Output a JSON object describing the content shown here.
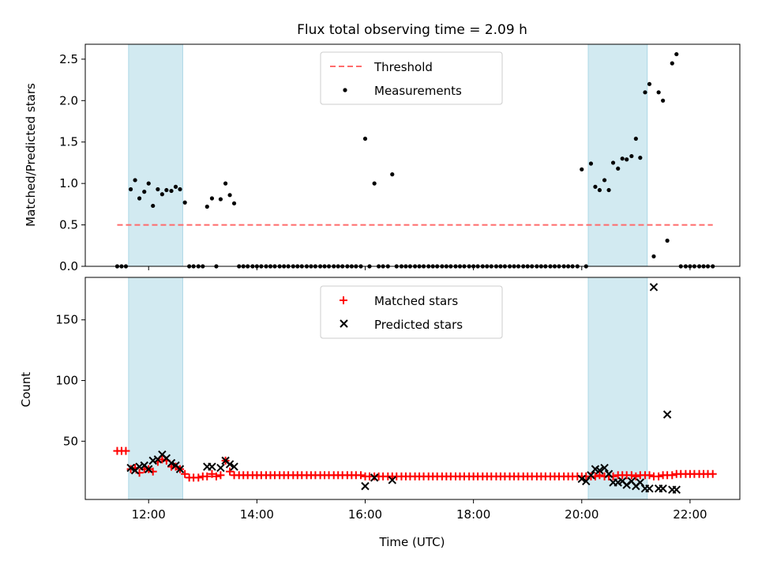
{
  "chart_data": [
    {
      "type": "scatter",
      "title": "Flux total observing time = 2.09 h",
      "xlabel": "",
      "ylabel": "Matched/Predicted stars",
      "xlim": [
        10.83,
        22.92
      ],
      "ylim": [
        0,
        2.68
      ],
      "yticks": [
        0.0,
        0.5,
        1.0,
        1.5,
        2.0,
        2.5
      ],
      "ytick_labels": [
        "0.0",
        "0.5",
        "1.0",
        "1.5",
        "2.0",
        "2.5"
      ],
      "xticks": [
        12,
        14,
        16,
        18,
        20,
        22
      ],
      "shaded_intervals": [
        [
          11.63,
          12.63
        ],
        [
          20.12,
          21.21
        ]
      ],
      "legend": {
        "location": "upper center",
        "entries": [
          "Threshold",
          "Measurements"
        ]
      },
      "series": [
        {
          "name": "Threshold",
          "style": "dashed-line",
          "color": "#ff6b6b",
          "x": [
            11.42,
            22.42
          ],
          "y": [
            0.5,
            0.5
          ]
        },
        {
          "name": "Measurements",
          "style": "dot",
          "color": "#000000",
          "x": [
            11.42,
            11.5,
            11.58,
            11.67,
            11.75,
            11.83,
            11.92,
            12.0,
            12.08,
            12.17,
            12.25,
            12.33,
            12.42,
            12.5,
            12.58,
            12.67,
            12.75,
            12.83,
            12.92,
            13.0,
            13.08,
            13.17,
            13.25,
            13.33,
            13.42,
            13.5,
            13.58,
            13.67,
            13.75,
            13.83,
            13.92,
            14.0,
            14.08,
            14.17,
            14.25,
            14.33,
            14.42,
            14.5,
            14.58,
            14.67,
            14.75,
            14.83,
            14.92,
            15.0,
            15.08,
            15.17,
            15.25,
            15.33,
            15.42,
            15.5,
            15.58,
            15.67,
            15.75,
            15.83,
            15.92,
            16.0,
            16.08,
            16.17,
            16.25,
            16.33,
            16.42,
            16.5,
            16.58,
            16.67,
            16.75,
            16.83,
            16.92,
            17.0,
            17.08,
            17.17,
            17.25,
            17.33,
            17.42,
            17.5,
            17.58,
            17.67,
            17.75,
            17.83,
            17.92,
            18.0,
            18.08,
            18.17,
            18.25,
            18.33,
            18.42,
            18.5,
            18.58,
            18.67,
            18.75,
            18.83,
            18.92,
            19.0,
            19.08,
            19.17,
            19.25,
            19.33,
            19.42,
            19.5,
            19.58,
            19.67,
            19.75,
            19.83,
            19.92,
            20.0,
            20.08,
            20.17,
            20.25,
            20.33,
            20.42,
            20.5,
            20.58,
            20.67,
            20.75,
            20.83,
            20.92,
            21.0,
            21.08,
            21.17,
            21.25,
            21.33,
            21.42,
            21.5,
            21.58,
            21.67,
            21.75,
            21.83,
            21.92,
            22.0,
            22.08,
            22.17,
            22.25,
            22.33,
            22.42
          ],
          "y": [
            0,
            0,
            0,
            0.93,
            1.04,
            0.82,
            0.9,
            1.0,
            0.73,
            0.93,
            0.87,
            0.92,
            0.91,
            0.96,
            0.93,
            0.77,
            0,
            0,
            0,
            0,
            0.72,
            0.82,
            0,
            0.81,
            1.0,
            0.86,
            0.76,
            0,
            0,
            0,
            0,
            0,
            0,
            0,
            0,
            0,
            0,
            0,
            0,
            0,
            0,
            0,
            0,
            0,
            0,
            0,
            0,
            0,
            0,
            0,
            0,
            0,
            0,
            0,
            0,
            1.54,
            0,
            1.0,
            0,
            0,
            0,
            1.11,
            0,
            0,
            0,
            0,
            0,
            0,
            0,
            0,
            0,
            0,
            0,
            0,
            0,
            0,
            0,
            0,
            0,
            0,
            0,
            0,
            0,
            0,
            0,
            0,
            0,
            0,
            0,
            0,
            0,
            0,
            0,
            0,
            0,
            0,
            0,
            0,
            0,
            0,
            0,
            0,
            0,
            1.17,
            0,
            1.24,
            0.96,
            0.92,
            1.04,
            0.92,
            1.25,
            1.18,
            1.3,
            1.29,
            1.33,
            1.54,
            1.31,
            2.1,
            2.2,
            0.12,
            2.1,
            2.0,
            0.31,
            2.45,
            2.56,
            0,
            0,
            0,
            0,
            0,
            0,
            0,
            0
          ]
        }
      ]
    },
    {
      "type": "scatter",
      "title": "",
      "xlabel": "Time (UTC)",
      "ylabel": "Count",
      "xlim": [
        10.83,
        22.92
      ],
      "ylim": [
        2,
        185
      ],
      "yticks": [
        50,
        100,
        150
      ],
      "ytick_labels": [
        "50",
        "100",
        "150"
      ],
      "xticks": [
        12,
        14,
        16,
        18,
        20,
        22
      ],
      "xtick_labels": [
        "12:00",
        "14:00",
        "16:00",
        "18:00",
        "20:00",
        "22:00"
      ],
      "shaded_intervals": [
        [
          11.63,
          12.63
        ],
        [
          20.12,
          21.21
        ]
      ],
      "legend": {
        "location": "upper center",
        "entries": [
          "Matched stars",
          "Predicted stars"
        ]
      },
      "series": [
        {
          "name": "Matched stars",
          "marker": "+",
          "color": "#ff0000",
          "x": [
            11.42,
            11.5,
            11.58,
            11.67,
            11.75,
            11.83,
            11.92,
            12.0,
            12.08,
            12.17,
            12.25,
            12.33,
            12.42,
            12.5,
            12.58,
            12.67,
            12.75,
            12.83,
            12.92,
            13.0,
            13.08,
            13.17,
            13.25,
            13.33,
            13.42,
            13.5,
            13.58,
            13.67,
            13.75,
            13.83,
            13.92,
            14.0,
            14.08,
            14.17,
            14.25,
            14.33,
            14.42,
            14.5,
            14.58,
            14.67,
            14.75,
            14.83,
            14.92,
            15.0,
            15.08,
            15.17,
            15.25,
            15.33,
            15.42,
            15.5,
            15.58,
            15.67,
            15.75,
            15.83,
            15.92,
            16.0,
            16.08,
            16.17,
            16.25,
            16.33,
            16.42,
            16.5,
            16.58,
            16.67,
            16.75,
            16.83,
            16.92,
            17.0,
            17.08,
            17.17,
            17.25,
            17.33,
            17.42,
            17.5,
            17.58,
            17.67,
            17.75,
            17.83,
            17.92,
            18.0,
            18.08,
            18.17,
            18.25,
            18.33,
            18.42,
            18.5,
            18.58,
            18.67,
            18.75,
            18.83,
            18.92,
            19.0,
            19.08,
            19.17,
            19.25,
            19.33,
            19.42,
            19.5,
            19.58,
            19.67,
            19.75,
            19.83,
            19.92,
            20.0,
            20.08,
            20.17,
            20.25,
            20.33,
            20.42,
            20.5,
            20.58,
            20.67,
            20.75,
            20.83,
            20.92,
            21.0,
            21.08,
            21.17,
            21.25,
            21.33,
            21.42,
            21.5,
            21.58,
            21.67,
            21.75,
            21.83,
            21.92,
            22.0,
            22.08,
            22.17,
            22.25,
            22.33,
            22.42
          ],
          "y": [
            42,
            42,
            42,
            27,
            28,
            24,
            27,
            27,
            25,
            33,
            35,
            34,
            29,
            29,
            27,
            23,
            20,
            20,
            20,
            21,
            21,
            23,
            21,
            22,
            34,
            25,
            22,
            22,
            22,
            22,
            22,
            22,
            22,
            22,
            22,
            22,
            22,
            22,
            22,
            22,
            22,
            22,
            22,
            22,
            22,
            22,
            22,
            22,
            22,
            22,
            22,
            22,
            22,
            22,
            22,
            21,
            21,
            21,
            21,
            21,
            21,
            21,
            21,
            21,
            21,
            21,
            21,
            21,
            21,
            21,
            21,
            21,
            21,
            21,
            21,
            21,
            21,
            21,
            21,
            21,
            21,
            21,
            21,
            21,
            21,
            21,
            21,
            21,
            21,
            21,
            21,
            21,
            21,
            21,
            21,
            21,
            21,
            21,
            21,
            21,
            21,
            21,
            21,
            21,
            21,
            21,
            21,
            22,
            21,
            21,
            21,
            22,
            22,
            22,
            22,
            21,
            22,
            22,
            22,
            21,
            21,
            22,
            22,
            22,
            23,
            23,
            23,
            23,
            23,
            23,
            23,
            23,
            23
          ]
        },
        {
          "name": "Predicted stars",
          "marker": "x",
          "color": "#000000",
          "x": [
            11.67,
            11.75,
            11.83,
            11.92,
            12.0,
            12.08,
            12.17,
            12.25,
            12.33,
            12.42,
            12.5,
            12.58,
            13.08,
            13.17,
            13.33,
            13.42,
            13.5,
            13.58,
            16.0,
            16.17,
            16.5,
            20.0,
            20.08,
            20.17,
            20.25,
            20.33,
            20.42,
            20.5,
            20.58,
            20.67,
            20.75,
            20.83,
            20.92,
            21.0,
            21.08,
            21.17,
            21.25,
            21.33,
            21.42,
            21.5,
            21.58,
            21.67,
            21.75
          ],
          "y": [
            28,
            26,
            29,
            30,
            27,
            34,
            35,
            39,
            36,
            32,
            30,
            27,
            29,
            29,
            28,
            34,
            31,
            29,
            13,
            20,
            18,
            19,
            17,
            22,
            27,
            26,
            28,
            23,
            16,
            16,
            17,
            14,
            17,
            13,
            16,
            11,
            11,
            177,
            11,
            11,
            72,
            10,
            10
          ]
        }
      ]
    }
  ]
}
